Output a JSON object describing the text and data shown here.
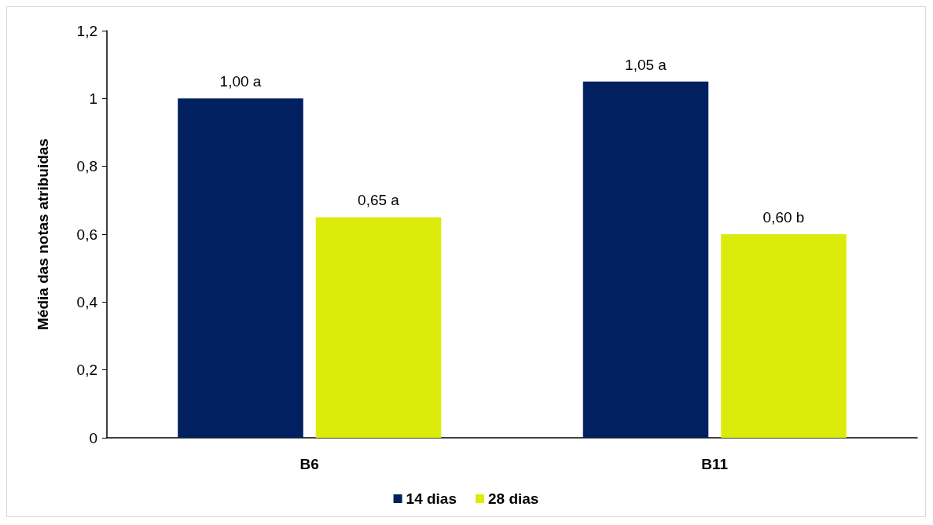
{
  "chart_data": {
    "type": "bar",
    "ylabel": "Média das notas atribuidas",
    "categories": [
      "B6",
      "B11"
    ],
    "series": [
      {
        "name": "14 dias",
        "color": "#002060",
        "values": [
          1.0,
          1.05
        ],
        "value_labels": [
          "1,00 a",
          "1,05 a"
        ]
      },
      {
        "name": "28 dias",
        "color": "#dcec0a",
        "values": [
          0.65,
          0.6
        ],
        "value_labels": [
          "0,65 a",
          "0,60 b"
        ]
      }
    ],
    "ylim": [
      0,
      1.2
    ],
    "yticks": [
      0,
      {
        "value": 0.2,
        "label": "0,2"
      },
      {
        "value": 0.4,
        "label": "0,4"
      },
      {
        "value": 0.6,
        "label": "0,6"
      },
      {
        "value": 0.8,
        "label": "0,8"
      },
      1,
      {
        "value": 1.2,
        "label": "1,2"
      }
    ],
    "grid": false,
    "legend": "bottom"
  }
}
